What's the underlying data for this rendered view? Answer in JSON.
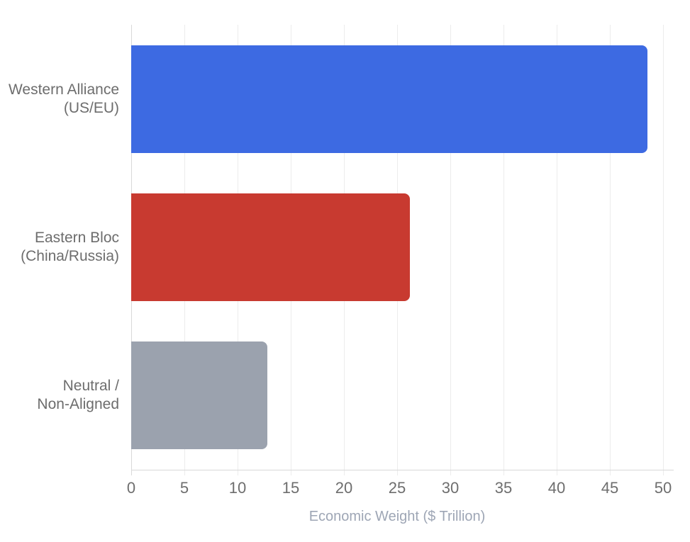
{
  "chart_data": {
    "type": "bar",
    "orientation": "horizontal",
    "title": "",
    "xlabel": "Economic Weight ($ Trillion)",
    "ylabel": "",
    "categories": [
      {
        "name": "western-alliance",
        "lines": [
          "Western Alliance",
          "(US/EU)"
        ]
      },
      {
        "name": "eastern-bloc",
        "lines": [
          "Eastern Bloc",
          "(China/Russia)"
        ]
      },
      {
        "name": "neutral-non-aligned",
        "lines": [
          "Neutral /",
          "Non-Aligned"
        ]
      }
    ],
    "values": [
      48.5,
      26.2,
      12.8
    ],
    "bar_colors": [
      "#3D6AE2",
      "#C83A30",
      "#9BA2AE"
    ],
    "xlim": [
      0,
      50
    ],
    "xticks": [
      0,
      5,
      10,
      15,
      20,
      25,
      30,
      35,
      40,
      45,
      50
    ],
    "grid": true,
    "legend": false
  },
  "style_colors": {
    "background": "#FFFFFF",
    "gridline": "#ECECEC",
    "zero_line": "#D9D9D9",
    "axis_line": "#D8D8D8",
    "tick_label": "#6E6E6E",
    "category_label": "#6D6D6D",
    "axis_title": "#9EA6B5"
  }
}
